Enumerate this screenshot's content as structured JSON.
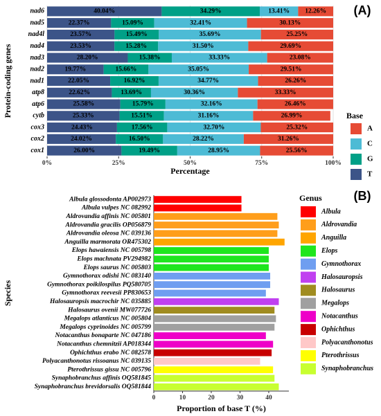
{
  "chart_data": [
    {
      "type": "stacked_bar",
      "annotation": "(A)",
      "ylabel": "Protein-coding genes",
      "xlabel": "Percentage",
      "categories": [
        "nad6",
        "nad5",
        "nad4l",
        "nad4",
        "nad3",
        "nad2",
        "nad1",
        "atp8",
        "atp6",
        "cytb",
        "cox3",
        "cox2",
        "cox1"
      ],
      "series": [
        {
          "name": "T",
          "color": "#3c5488",
          "values": [
            40.04,
            22.37,
            23.57,
            23.53,
            28.2,
            19.77,
            22.05,
            22.62,
            25.58,
            25.33,
            24.43,
            24.02,
            26.0
          ],
          "value_labels": [
            "40.04%",
            "22.37%",
            "23.57%",
            "23.53%",
            "28.20%",
            "19.77%",
            "22.05%",
            "22.62%",
            "25.58%",
            "25.33%",
            "24.43%",
            "24.02%",
            "26.00%"
          ]
        },
        {
          "name": "G",
          "color": "#00a087",
          "values": [
            34.29,
            15.09,
            15.49,
            15.28,
            15.38,
            15.66,
            16.92,
            13.69,
            15.79,
            15.51,
            17.56,
            16.5,
            19.49
          ],
          "value_labels": [
            "34.29%",
            "15.09%",
            "15.49%",
            "15.28%",
            "15.38%",
            "15.66%",
            "16.92%",
            "13.69%",
            "15.79%",
            "15.51%",
            "17.56%",
            "16.50%",
            "19.49%"
          ]
        },
        {
          "name": "C",
          "color": "#4dbbd5",
          "values": [
            13.41,
            32.41,
            35.69,
            31.5,
            33.33,
            35.05,
            34.77,
            30.36,
            32.16,
            31.16,
            32.7,
            28.22,
            28.95
          ],
          "value_labels": [
            "13.41%",
            "32.41%",
            "35.69%",
            "31.50%",
            "33.33%",
            "35.05%",
            "34.77%",
            "30.36%",
            "32.16%",
            "31.16%",
            "32.70%",
            "28.22%",
            "28.95%"
          ]
        },
        {
          "name": "A",
          "color": "#e64b35",
          "values": [
            12.26,
            30.13,
            25.25,
            29.69,
            23.08,
            29.51,
            26.26,
            33.33,
            26.46,
            26.99,
            25.32,
            31.26,
            25.56
          ],
          "value_labels": [
            "12.26%",
            "30.13%",
            "25.25%",
            "29.69%",
            "23.08%",
            "29.51%",
            "26.26%",
            "33.33%",
            "26.46%",
            "26.99%",
            "25.32%",
            "31.26%",
            "25.56%"
          ]
        }
      ],
      "legend_title": "Base",
      "legend_order": [
        "A",
        "C",
        "G",
        "T"
      ],
      "xlim": [
        0,
        100
      ],
      "xticks": [
        {
          "value": 0,
          "label": "0%"
        },
        {
          "value": 25,
          "label": "25%"
        },
        {
          "value": 50,
          "label": "50%"
        },
        {
          "value": 75,
          "label": "75%"
        },
        {
          "value": 100,
          "label": "100%"
        }
      ],
      "grid": true
    },
    {
      "type": "bar",
      "annotation": "(B)",
      "ylabel": "Species",
      "xlabel": "Proportion of base T (%)",
      "categories": [
        "Albula glossodonta AP002973",
        "Albula vulpes NC 082992",
        "Aldrovandia affinis NC 005801",
        "Aldrovandia gracilis OP056879",
        "Aldrovandia oleosa NC 039136",
        "Anguilla marmorata OR475302",
        "Elops hawaiensis NC 005798",
        "Elops machnata PV294982",
        "Elops saurus NC 005803",
        "Gymnothorax odishi NC 083140",
        "Gymnothorax poikilospilus PQ580705",
        "Gymnothorax reevesii PP830653",
        "Halosauropsis macrochir NC 035885",
        "Halosaurus ovenii MW077726",
        "Megalops atlanticus NC 005804",
        "Megalops cyprinoides NC 005799",
        "Notacanthus bonaparte NC 047186",
        "Notacanthus chemnitzii AP018344",
        "Ophichthus erabo NC 082578",
        "Polyacanthonotus rissoanus NC 039135",
        "Pterothrissus gissu NC 005796",
        "Synaphobranchus affinis OQ581845",
        "Synaphobranchus brevidorsalis OQ581844"
      ],
      "values": [
        30.5,
        30.5,
        43,
        43.5,
        43,
        45.5,
        40,
        40,
        40,
        40.5,
        40.5,
        39,
        43.5,
        42,
        42.5,
        42,
        39,
        41.5,
        41,
        37,
        41.5,
        42,
        43.5
      ],
      "colors": [
        "#ff0000",
        "#ff0000",
        "#ff9e1b",
        "#ff9e1b",
        "#ff9e1b",
        "#ffa500",
        "#1ee61e",
        "#1ee61e",
        "#1ee61e",
        "#6f9ef0",
        "#6f9ef0",
        "#6f9ef0",
        "#c040f0",
        "#a08c20",
        "#a0a0a0",
        "#a0a0a0",
        "#ee00c8",
        "#ee00c8",
        "#c80000",
        "#ffc8c8",
        "#ffff00",
        "#c8ff30",
        "#c8ff30"
      ],
      "legend_title": "Genus",
      "legend": [
        {
          "name": "Albula",
          "color": "#ff0000"
        },
        {
          "name": "Aldrovandia",
          "color": "#ff9e1b"
        },
        {
          "name": "Anguilla",
          "color": "#ffa500"
        },
        {
          "name": "Elops",
          "color": "#1ee61e"
        },
        {
          "name": "Gymnothorax",
          "color": "#6f9ef0"
        },
        {
          "name": "Halosauropsis",
          "color": "#c040f0"
        },
        {
          "name": "Halosaurus",
          "color": "#a08c20"
        },
        {
          "name": "Megalops",
          "color": "#a0a0a0"
        },
        {
          "name": "Notacanthus",
          "color": "#ee00c8"
        },
        {
          "name": "Ophichthus",
          "color": "#c80000"
        },
        {
          "name": "Polyacanthonotus",
          "color": "#ffc8c8"
        },
        {
          "name": "Pterothrissus",
          "color": "#ffff00"
        },
        {
          "name": "Synaphobranchus",
          "color": "#c8ff30"
        }
      ],
      "xlim": [
        0,
        47
      ],
      "xticks": [
        0,
        10,
        20,
        30,
        40
      ],
      "grid": false
    }
  ]
}
